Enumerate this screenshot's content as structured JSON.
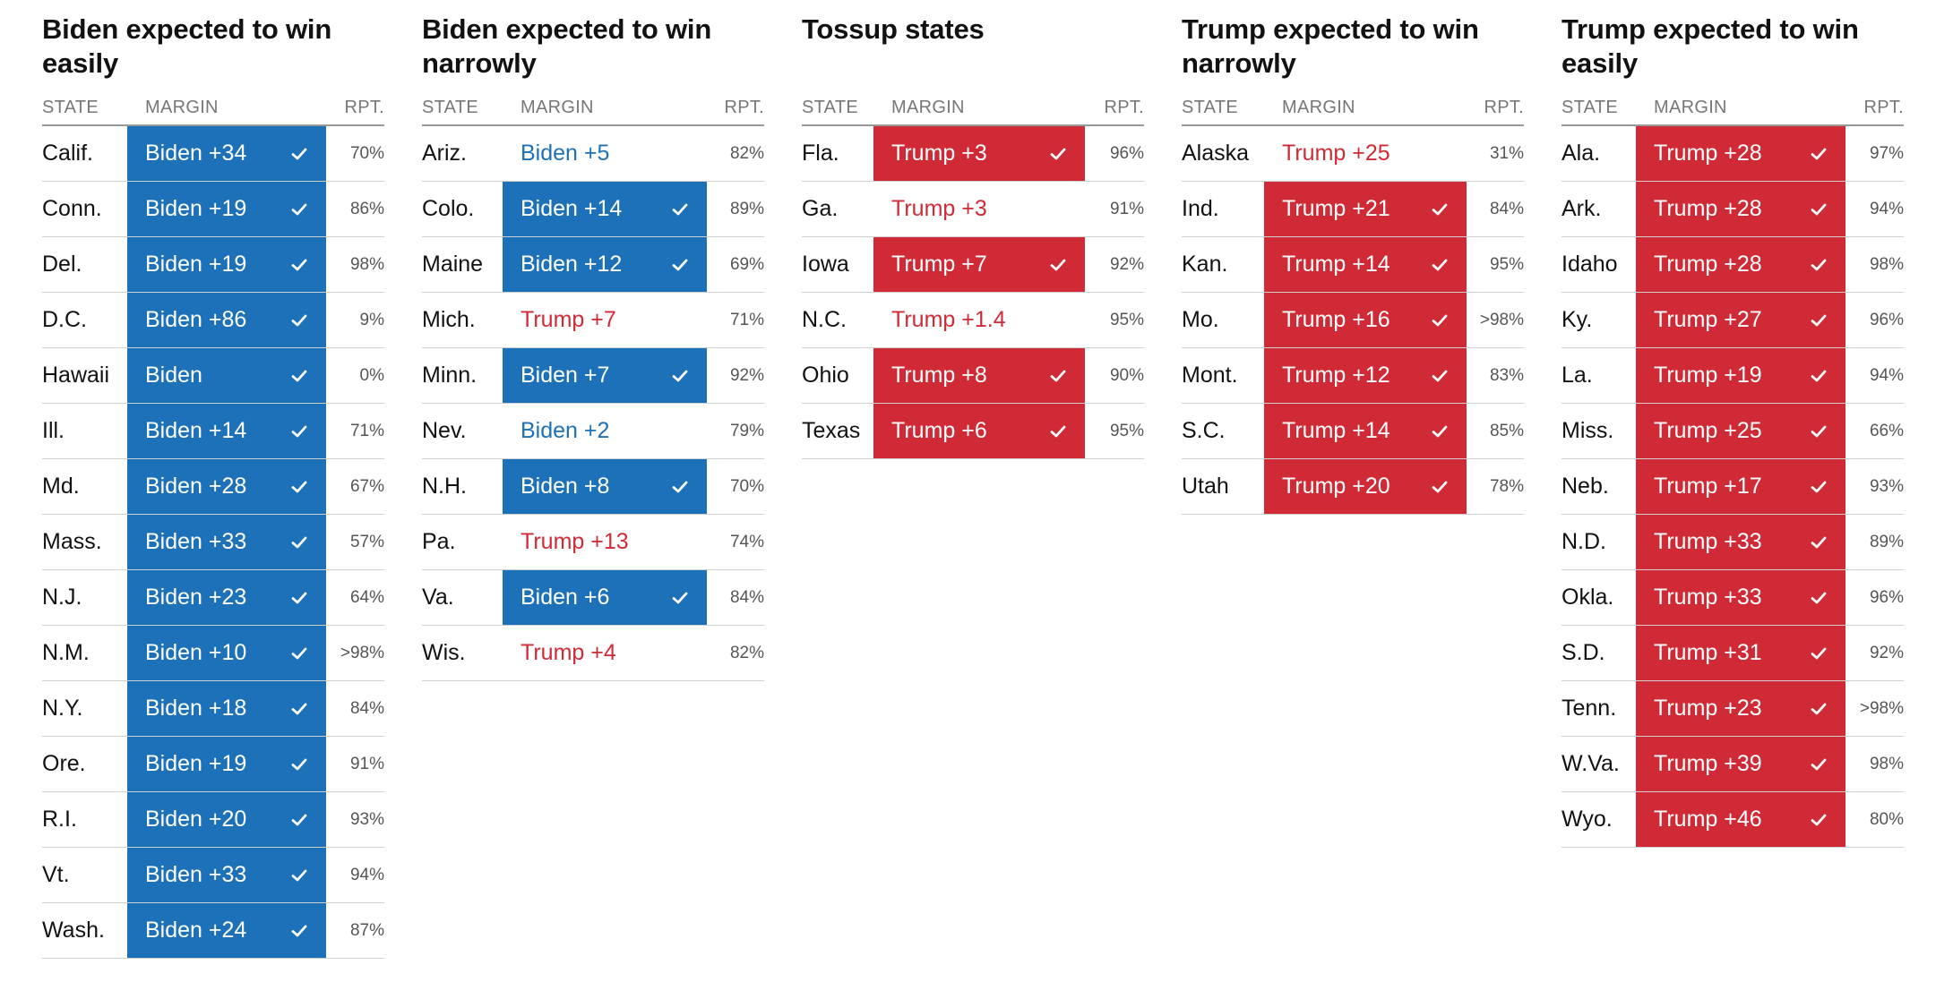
{
  "columns": {
    "state": "STATE",
    "margin": "MARGIN",
    "reported": "RPT."
  },
  "colors": {
    "biden": "#1c71b8",
    "trump": "#cf2a36"
  },
  "groups": [
    {
      "id": "biden-easily",
      "title": "Biden expected to win easily",
      "rows": [
        {
          "state": "Calif.",
          "margin": "Biden +34",
          "party": "biden",
          "called": true,
          "rpt": "70%"
        },
        {
          "state": "Conn.",
          "margin": "Biden +19",
          "party": "biden",
          "called": true,
          "rpt": "86%"
        },
        {
          "state": "Del.",
          "margin": "Biden +19",
          "party": "biden",
          "called": true,
          "rpt": "98%"
        },
        {
          "state": "D.C.",
          "margin": "Biden +86",
          "party": "biden",
          "called": true,
          "rpt": "9%"
        },
        {
          "state": "Hawaii",
          "margin": "Biden",
          "party": "biden",
          "called": true,
          "rpt": "0%"
        },
        {
          "state": "Ill.",
          "margin": "Biden +14",
          "party": "biden",
          "called": true,
          "rpt": "71%"
        },
        {
          "state": "Md.",
          "margin": "Biden +28",
          "party": "biden",
          "called": true,
          "rpt": "67%"
        },
        {
          "state": "Mass.",
          "margin": "Biden +33",
          "party": "biden",
          "called": true,
          "rpt": "57%"
        },
        {
          "state": "N.J.",
          "margin": "Biden +23",
          "party": "biden",
          "called": true,
          "rpt": "64%"
        },
        {
          "state": "N.M.",
          "margin": "Biden +10",
          "party": "biden",
          "called": true,
          "rpt": ">98%"
        },
        {
          "state": "N.Y.",
          "margin": "Biden +18",
          "party": "biden",
          "called": true,
          "rpt": "84%"
        },
        {
          "state": "Ore.",
          "margin": "Biden +19",
          "party": "biden",
          "called": true,
          "rpt": "91%"
        },
        {
          "state": "R.I.",
          "margin": "Biden +20",
          "party": "biden",
          "called": true,
          "rpt": "93%"
        },
        {
          "state": "Vt.",
          "margin": "Biden +33",
          "party": "biden",
          "called": true,
          "rpt": "94%"
        },
        {
          "state": "Wash.",
          "margin": "Biden +24",
          "party": "biden",
          "called": true,
          "rpt": "87%"
        }
      ]
    },
    {
      "id": "biden-narrowly",
      "title": "Biden expected to win narrowly",
      "rows": [
        {
          "state": "Ariz.",
          "margin": "Biden +5",
          "party": "biden",
          "called": false,
          "rpt": "82%"
        },
        {
          "state": "Colo.",
          "margin": "Biden +14",
          "party": "biden",
          "called": true,
          "rpt": "89%"
        },
        {
          "state": "Maine",
          "margin": "Biden +12",
          "party": "biden",
          "called": true,
          "rpt": "69%"
        },
        {
          "state": "Mich.",
          "margin": "Trump +7",
          "party": "trump",
          "called": false,
          "rpt": "71%"
        },
        {
          "state": "Minn.",
          "margin": "Biden +7",
          "party": "biden",
          "called": true,
          "rpt": "92%"
        },
        {
          "state": "Nev.",
          "margin": "Biden +2",
          "party": "biden",
          "called": false,
          "rpt": "79%"
        },
        {
          "state": "N.H.",
          "margin": "Biden +8",
          "party": "biden",
          "called": true,
          "rpt": "70%"
        },
        {
          "state": "Pa.",
          "margin": "Trump +13",
          "party": "trump",
          "called": false,
          "rpt": "74%"
        },
        {
          "state": "Va.",
          "margin": "Biden +6",
          "party": "biden",
          "called": true,
          "rpt": "84%"
        },
        {
          "state": "Wis.",
          "margin": "Trump +4",
          "party": "trump",
          "called": false,
          "rpt": "82%"
        }
      ]
    },
    {
      "id": "tossup",
      "title": "Tossup states",
      "rows": [
        {
          "state": "Fla.",
          "margin": "Trump +3",
          "party": "trump",
          "called": true,
          "rpt": "96%"
        },
        {
          "state": "Ga.",
          "margin": "Trump +3",
          "party": "trump",
          "called": false,
          "rpt": "91%"
        },
        {
          "state": "Iowa",
          "margin": "Trump +7",
          "party": "trump",
          "called": true,
          "rpt": "92%"
        },
        {
          "state": "N.C.",
          "margin": "Trump +1.4",
          "party": "trump",
          "called": false,
          "rpt": "95%"
        },
        {
          "state": "Ohio",
          "margin": "Trump +8",
          "party": "trump",
          "called": true,
          "rpt": "90%"
        },
        {
          "state": "Texas",
          "margin": "Trump +6",
          "party": "trump",
          "called": true,
          "rpt": "95%"
        }
      ]
    },
    {
      "id": "trump-narrowly",
      "title": "Trump expected to win narrowly",
      "rows": [
        {
          "state": "Alaska",
          "margin": "Trump +25",
          "party": "trump",
          "called": false,
          "rpt": "31%"
        },
        {
          "state": "Ind.",
          "margin": "Trump +21",
          "party": "trump",
          "called": true,
          "rpt": "84%"
        },
        {
          "state": "Kan.",
          "margin": "Trump +14",
          "party": "trump",
          "called": true,
          "rpt": "95%"
        },
        {
          "state": "Mo.",
          "margin": "Trump +16",
          "party": "trump",
          "called": true,
          "rpt": ">98%"
        },
        {
          "state": "Mont.",
          "margin": "Trump +12",
          "party": "trump",
          "called": true,
          "rpt": "83%"
        },
        {
          "state": "S.C.",
          "margin": "Trump +14",
          "party": "trump",
          "called": true,
          "rpt": "85%"
        },
        {
          "state": "Utah",
          "margin": "Trump +20",
          "party": "trump",
          "called": true,
          "rpt": "78%"
        }
      ]
    },
    {
      "id": "trump-easily",
      "title": "Trump expected to win easily",
      "rows": [
        {
          "state": "Ala.",
          "margin": "Trump +28",
          "party": "trump",
          "called": true,
          "rpt": "97%"
        },
        {
          "state": "Ark.",
          "margin": "Trump +28",
          "party": "trump",
          "called": true,
          "rpt": "94%"
        },
        {
          "state": "Idaho",
          "margin": "Trump +28",
          "party": "trump",
          "called": true,
          "rpt": "98%"
        },
        {
          "state": "Ky.",
          "margin": "Trump +27",
          "party": "trump",
          "called": true,
          "rpt": "96%"
        },
        {
          "state": "La.",
          "margin": "Trump +19",
          "party": "trump",
          "called": true,
          "rpt": "94%"
        },
        {
          "state": "Miss.",
          "margin": "Trump +25",
          "party": "trump",
          "called": true,
          "rpt": "66%"
        },
        {
          "state": "Neb.",
          "margin": "Trump +17",
          "party": "trump",
          "called": true,
          "rpt": "93%"
        },
        {
          "state": "N.D.",
          "margin": "Trump +33",
          "party": "trump",
          "called": true,
          "rpt": "89%"
        },
        {
          "state": "Okla.",
          "margin": "Trump +33",
          "party": "trump",
          "called": true,
          "rpt": "96%"
        },
        {
          "state": "S.D.",
          "margin": "Trump +31",
          "party": "trump",
          "called": true,
          "rpt": "92%"
        },
        {
          "state": "Tenn.",
          "margin": "Trump +23",
          "party": "trump",
          "called": true,
          "rpt": ">98%"
        },
        {
          "state": "W.Va.",
          "margin": "Trump +39",
          "party": "trump",
          "called": true,
          "rpt": "98%"
        },
        {
          "state": "Wyo.",
          "margin": "Trump +46",
          "party": "trump",
          "called": true,
          "rpt": "80%"
        }
      ]
    }
  ]
}
